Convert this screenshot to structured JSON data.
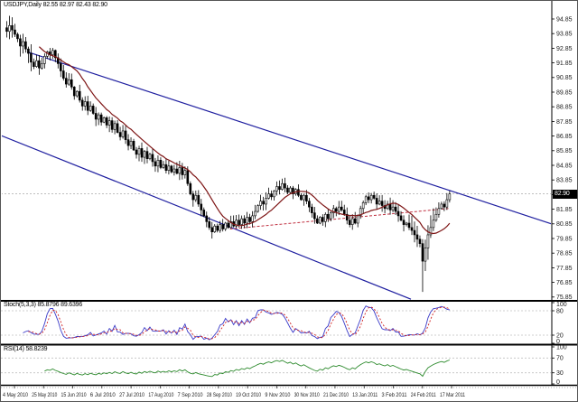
{
  "window": {
    "title": "USDJPY,Daily 82.55 82.97 82.43 82.90"
  },
  "chart_data": {
    "type": "candlestick",
    "symbol": "USDJPY",
    "timeframe": "Daily",
    "title": "USDJPY,Daily 82.55 82.97 82.43 82.90",
    "ohlc": {
      "open": "82.55",
      "high": "82.97",
      "low": "82.43",
      "close": "82.90"
    },
    "current_price": 82.9,
    "current_price_label": "82.90",
    "price_axis_labels": [
      "94.85",
      "93.85",
      "92.85",
      "91.85",
      "90.85",
      "89.85",
      "88.85",
      "87.85",
      "86.85",
      "85.85",
      "84.85",
      "83.85",
      "82.85",
      "81.85",
      "80.85",
      "79.85",
      "78.85",
      "77.85",
      "76.85",
      "75.85"
    ],
    "price_axis_top_value": 94.85,
    "price_axis_step": 1.0,
    "x_axis_dates": [
      "4 May 2010",
      "25 May 2010",
      "15 Jun 2010",
      "6 Jul 2010",
      "27 Jul 2010",
      "17 Aug 2010",
      "7 Sep 2010",
      "28 Sep 2010",
      "19 Oct 2010",
      "9 Nov 2010",
      "30 Nov 2010",
      "21 Dec 2010",
      "13 Jan 2011",
      "3 Feb 2011",
      "24 Feb 2011",
      "17 Mar 2011"
    ],
    "closes": [
      94.0,
      94.4,
      94.1,
      93.8,
      93.5,
      93.0,
      93.3,
      92.8,
      92.5,
      91.9,
      91.6,
      92.0,
      91.5,
      91.8,
      92.3,
      92.6,
      92.4,
      92.7,
      92.2,
      91.8,
      91.3,
      90.8,
      90.4,
      90.7,
      90.2,
      89.6,
      89.9,
      89.3,
      88.9,
      89.2,
      88.6,
      88.9,
      88.4,
      88.0,
      88.3,
      87.8,
      88.1,
      87.6,
      87.9,
      87.3,
      87.7,
      87.1,
      86.8,
      87.2,
      86.6,
      86.2,
      86.5,
      85.9,
      85.6,
      86.0,
      85.4,
      85.8,
      85.3,
      85.6,
      85.1,
      84.8,
      85.2,
      84.7,
      84.9,
      84.5,
      84.8,
      84.4,
      84.6,
      84.3,
      84.7,
      84.2,
      84.5,
      83.6,
      82.9,
      82.5,
      82.8,
      82.2,
      81.8,
      81.4,
      81.0,
      80.6,
      80.3,
      80.7,
      80.4,
      80.8,
      80.5,
      80.9,
      80.6,
      81.0,
      80.7,
      81.1,
      80.8,
      81.2,
      80.9,
      81.3,
      81.0,
      81.4,
      81.7,
      82.1,
      82.4,
      82.2,
      82.6,
      82.9,
      82.7,
      83.1,
      83.4,
      83.2,
      83.6,
      83.3,
      83.0,
      83.3,
      82.9,
      83.2,
      82.8,
      82.5,
      82.8,
      82.4,
      82.0,
      81.6,
      81.2,
      80.9,
      81.3,
      81.0,
      81.5,
      81.2,
      81.6,
      81.9,
      81.7,
      82.0,
      81.8,
      81.5,
      81.1,
      80.8,
      81.2,
      80.9,
      81.4,
      81.9,
      82.3,
      82.7,
      82.5,
      82.8,
      82.6,
      82.2,
      82.4,
      82.1,
      81.9,
      82.2,
      81.8,
      82.0,
      81.7,
      81.4,
      81.1,
      80.8,
      80.9,
      80.6,
      80.4,
      80.1,
      79.8,
      79.5,
      78.3,
      79.2,
      80.1,
      80.6,
      81.1,
      81.5,
      81.9,
      82.2,
      82.0,
      82.5,
      82.9
    ],
    "special_bars": [
      {
        "index": 154,
        "low": 76.2,
        "high": 79.8
      }
    ],
    "moving_average": {
      "period": 13
    },
    "overlays": {
      "channel_upper": {
        "i1": 8,
        "p1": 92.6,
        "i2": 202,
        "p2": 80.85
      },
      "channel_lower": {
        "i1": -2,
        "p1": 86.9,
        "i2": 150,
        "p2": 75.7
      },
      "support_trendline": {
        "i1": 83,
        "p1": 80.5,
        "i2": 164,
        "p2": 81.9
      }
    }
  },
  "indicators": {
    "stochastic": {
      "label": "Stoch(5,3,3) 85.8796 89.6396",
      "params": [
        5,
        3,
        3
      ],
      "main_value": "85.8796",
      "signal_value": "89.6396",
      "levels": [
        80,
        20
      ],
      "scale_labels": [
        {
          "text": "100",
          "value": 100
        },
        {
          "text": "80",
          "value": 80
        },
        {
          "text": "20",
          "value": 20
        },
        {
          "text": "0",
          "value": 0
        }
      ]
    },
    "rsi": {
      "label": "RSI(14) 58.8239",
      "period": 14,
      "value": "58.8239",
      "levels": [
        70,
        30
      ],
      "scale_labels": [
        {
          "text": "100",
          "value": 100
        },
        {
          "text": "70",
          "value": 70
        },
        {
          "text": "30",
          "value": 30
        },
        {
          "text": "0",
          "value": 0
        }
      ]
    }
  },
  "colors": {
    "background": "#ffffff",
    "candle_up": "#ffffff",
    "candle_down": "#000000",
    "candle_outline": "#000000",
    "ma": "#7d1414",
    "channel": "#1f1fa0",
    "trendline_dashed": "#c03040",
    "bid_line": "#a8a8a8",
    "stoch_main": "#3a3ac8",
    "stoch_signal": "#d02020",
    "rsi": "#2e8b2e",
    "level_dashed": "#c0c0c0",
    "axis_text": "#1a1a1a",
    "separator": "#000000"
  }
}
